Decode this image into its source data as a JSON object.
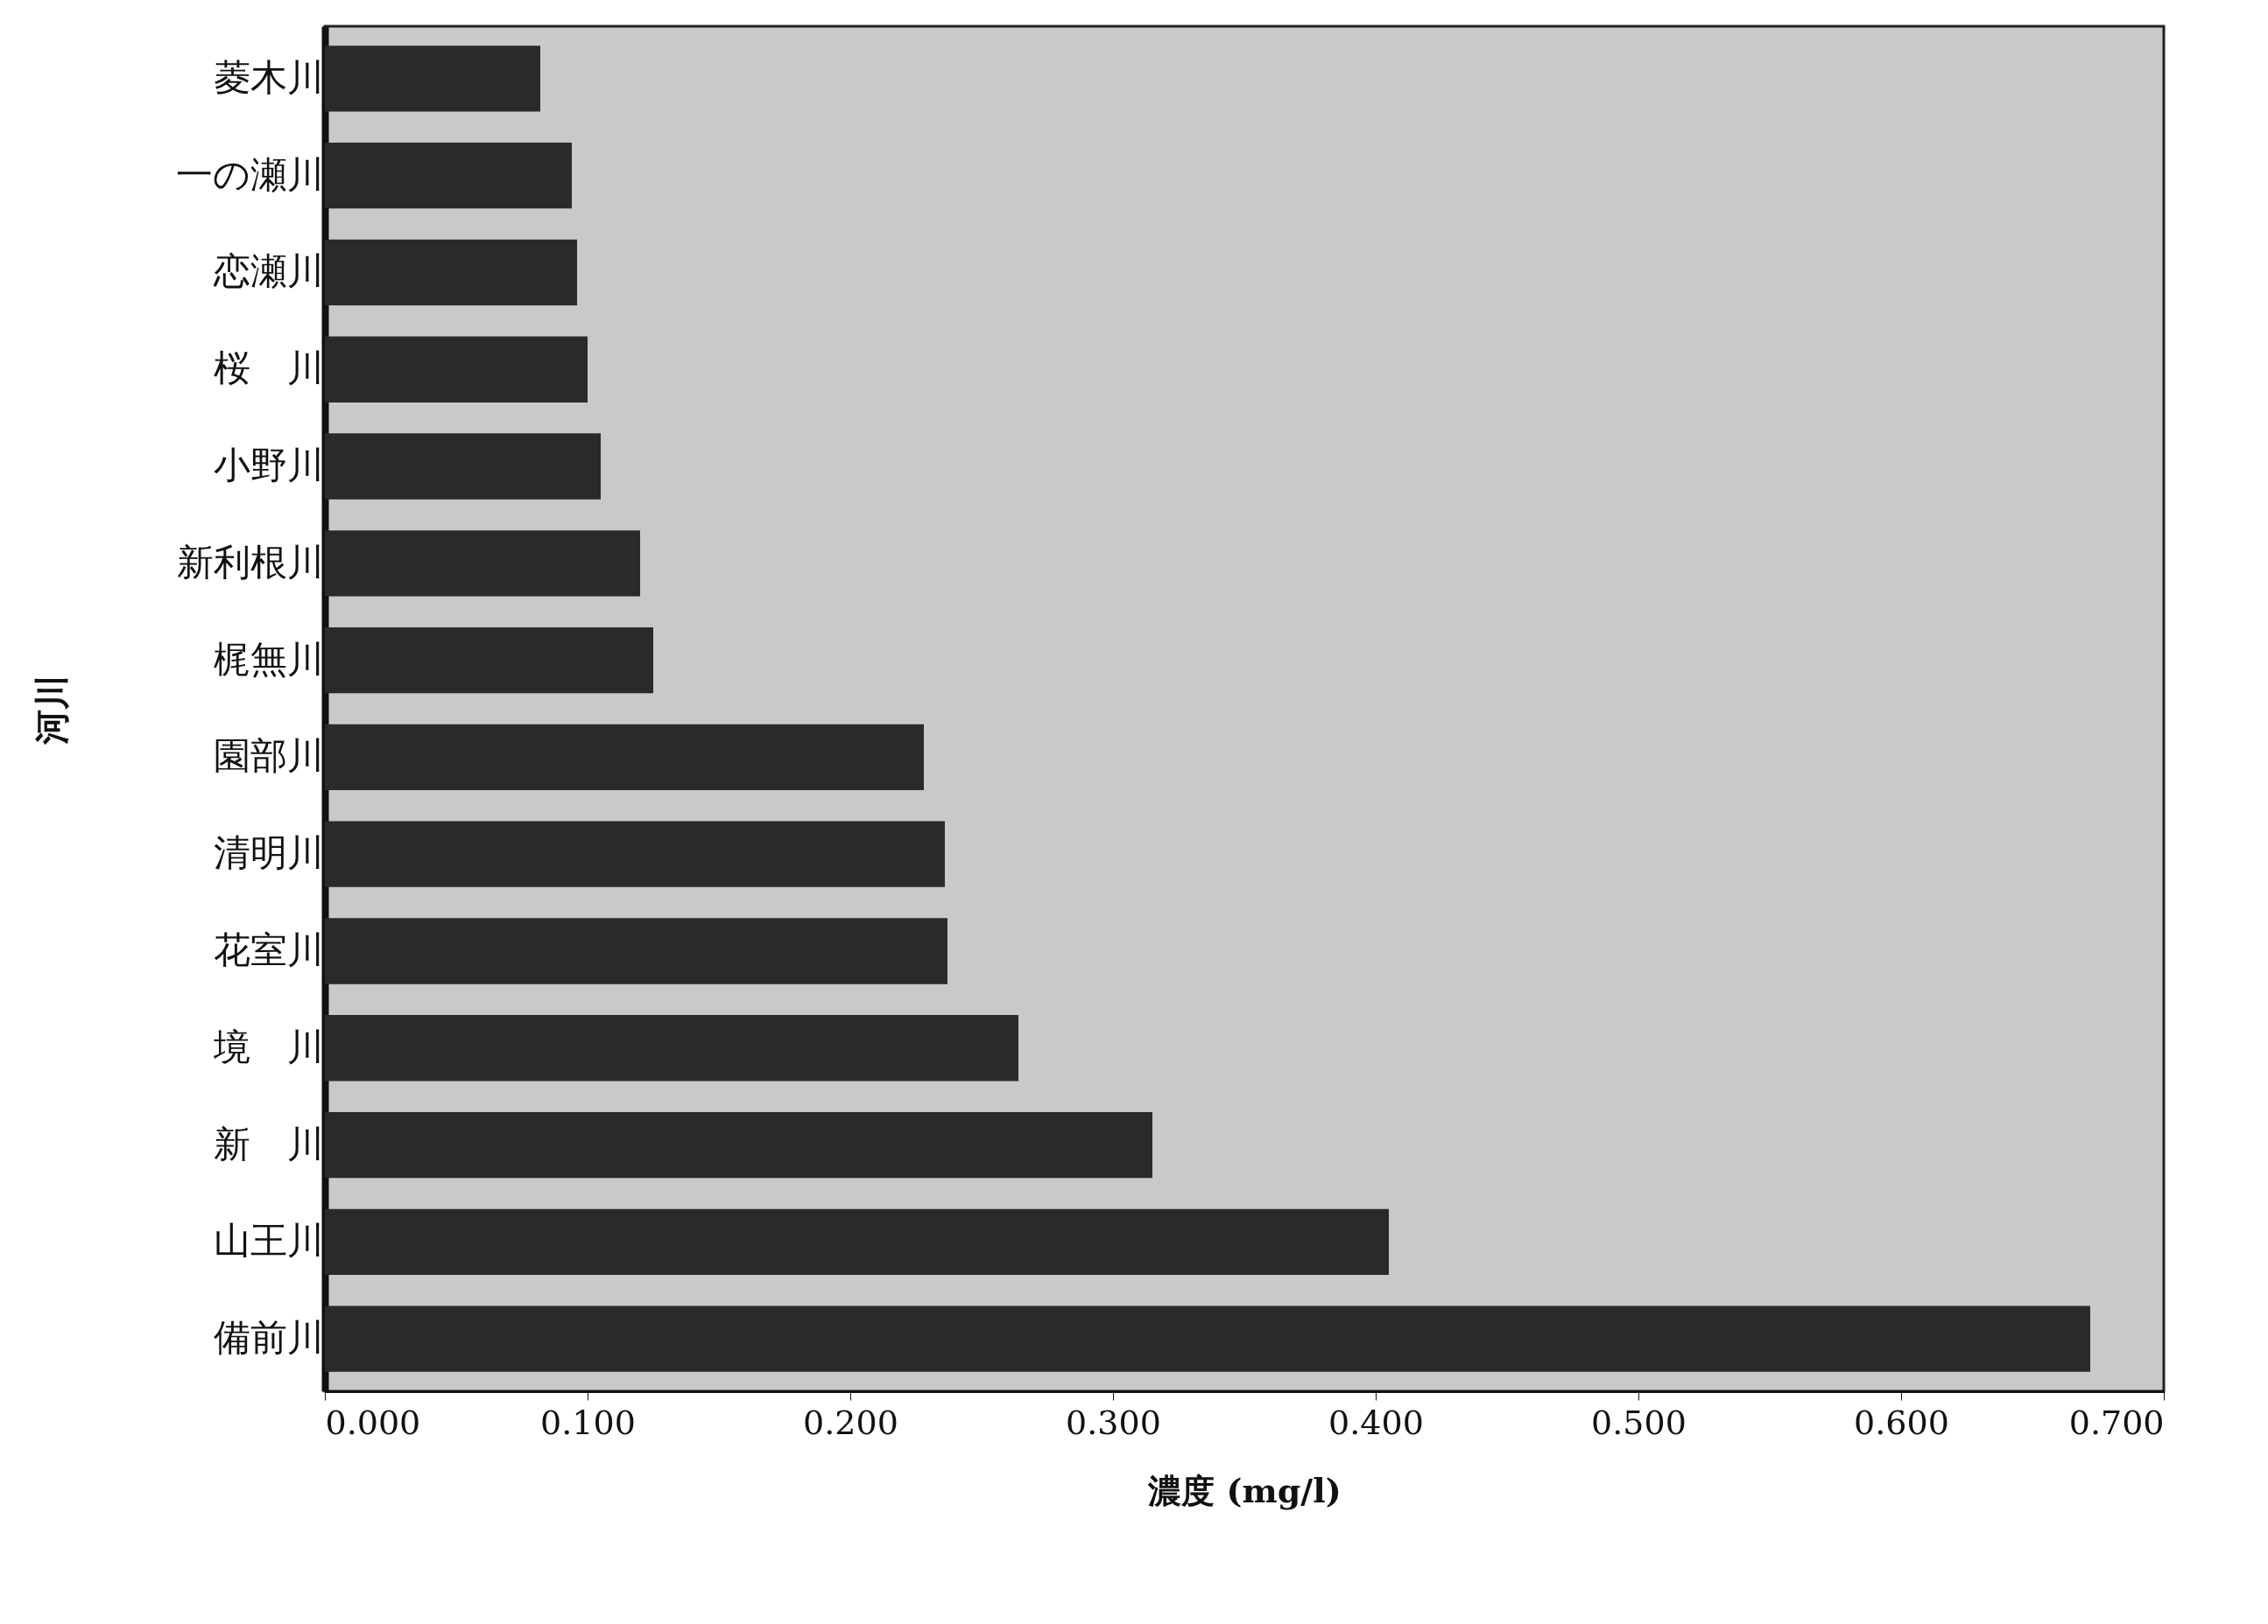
{
  "chart_data": {
    "type": "bar",
    "orientation": "horizontal",
    "xlabel": "濃度 (mg/l)",
    "ylabel": "河川",
    "categories": [
      "菱木川",
      "一の瀬川",
      "恋瀬川",
      "桜　川",
      "小野川",
      "新利根川",
      "梶無川",
      "園部川",
      "清明川",
      "花室川",
      "境　川",
      "新　川",
      "山王川",
      "備前川"
    ],
    "values": [
      0.082,
      0.094,
      0.096,
      0.1,
      0.105,
      0.12,
      0.125,
      0.228,
      0.236,
      0.237,
      0.264,
      0.315,
      0.405,
      0.672
    ],
    "color": "#2a2a2a",
    "xlim": [
      0,
      0.7
    ],
    "xticks": [
      {
        "value": 0,
        "label": "0.000"
      },
      {
        "value": 0.1,
        "label": "0.100"
      },
      {
        "value": 0.2,
        "label": "0.200"
      },
      {
        "value": 0.3,
        "label": "0.300"
      },
      {
        "value": 0.4,
        "label": "0.400"
      },
      {
        "value": 0.5,
        "label": "0.500"
      },
      {
        "value": 0.6,
        "label": "0.600"
      },
      {
        "value": 0.7,
        "label": "0.700"
      }
    ]
  }
}
